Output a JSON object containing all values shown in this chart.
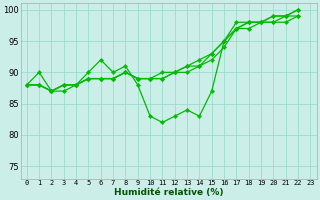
{
  "xlabel": "Humidité relative (%)",
  "bg_color": "#cceee8",
  "grid_color": "#99ddcc",
  "line_color": "#00bb00",
  "xlim": [
    -0.5,
    23.5
  ],
  "ylim": [
    73,
    101
  ],
  "yticks": [
    75,
    80,
    85,
    90,
    95,
    100
  ],
  "xticks": [
    0,
    1,
    2,
    3,
    4,
    5,
    6,
    7,
    8,
    9,
    10,
    11,
    12,
    13,
    14,
    15,
    16,
    17,
    18,
    19,
    20,
    21,
    22,
    23
  ],
  "series1_x": [
    0,
    1,
    2,
    3,
    4,
    5,
    6,
    7,
    8,
    9,
    10,
    11,
    12,
    13,
    14,
    15,
    16,
    17,
    18,
    19,
    20,
    21,
    22
  ],
  "series1_y": [
    88,
    90,
    87,
    87,
    88,
    90,
    92,
    90,
    91,
    88,
    83,
    82,
    83,
    84,
    83,
    87,
    95,
    98,
    98,
    98,
    98,
    99,
    99
  ],
  "series2_x": [
    0,
    1,
    2,
    3,
    4,
    5,
    6,
    7,
    8,
    9,
    10,
    11,
    12,
    13,
    14,
    15,
    16,
    17,
    18,
    19,
    20,
    21,
    22
  ],
  "series2_y": [
    88,
    88,
    87,
    88,
    88,
    89,
    89,
    89,
    90,
    89,
    89,
    89,
    90,
    90,
    91,
    92,
    94,
    97,
    97,
    98,
    98,
    98,
    99
  ],
  "series3_x": [
    0,
    1,
    2,
    3,
    4,
    5,
    6,
    7,
    8,
    9,
    10,
    11,
    12,
    13,
    14,
    15,
    16,
    17,
    18,
    19,
    20,
    21,
    22
  ],
  "series3_y": [
    88,
    88,
    87,
    88,
    88,
    89,
    89,
    89,
    90,
    89,
    89,
    89,
    90,
    91,
    91,
    93,
    95,
    97,
    98,
    98,
    99,
    99,
    100
  ],
  "series4_x": [
    0,
    1,
    2,
    3,
    4,
    5,
    6,
    7,
    8,
    9,
    10,
    11,
    12,
    13,
    14,
    15,
    16,
    17,
    18,
    19,
    20,
    21,
    22
  ],
  "series4_y": [
    88,
    88,
    87,
    88,
    88,
    89,
    89,
    89,
    90,
    89,
    89,
    90,
    90,
    91,
    92,
    93,
    95,
    97,
    98,
    98,
    99,
    99,
    100
  ]
}
